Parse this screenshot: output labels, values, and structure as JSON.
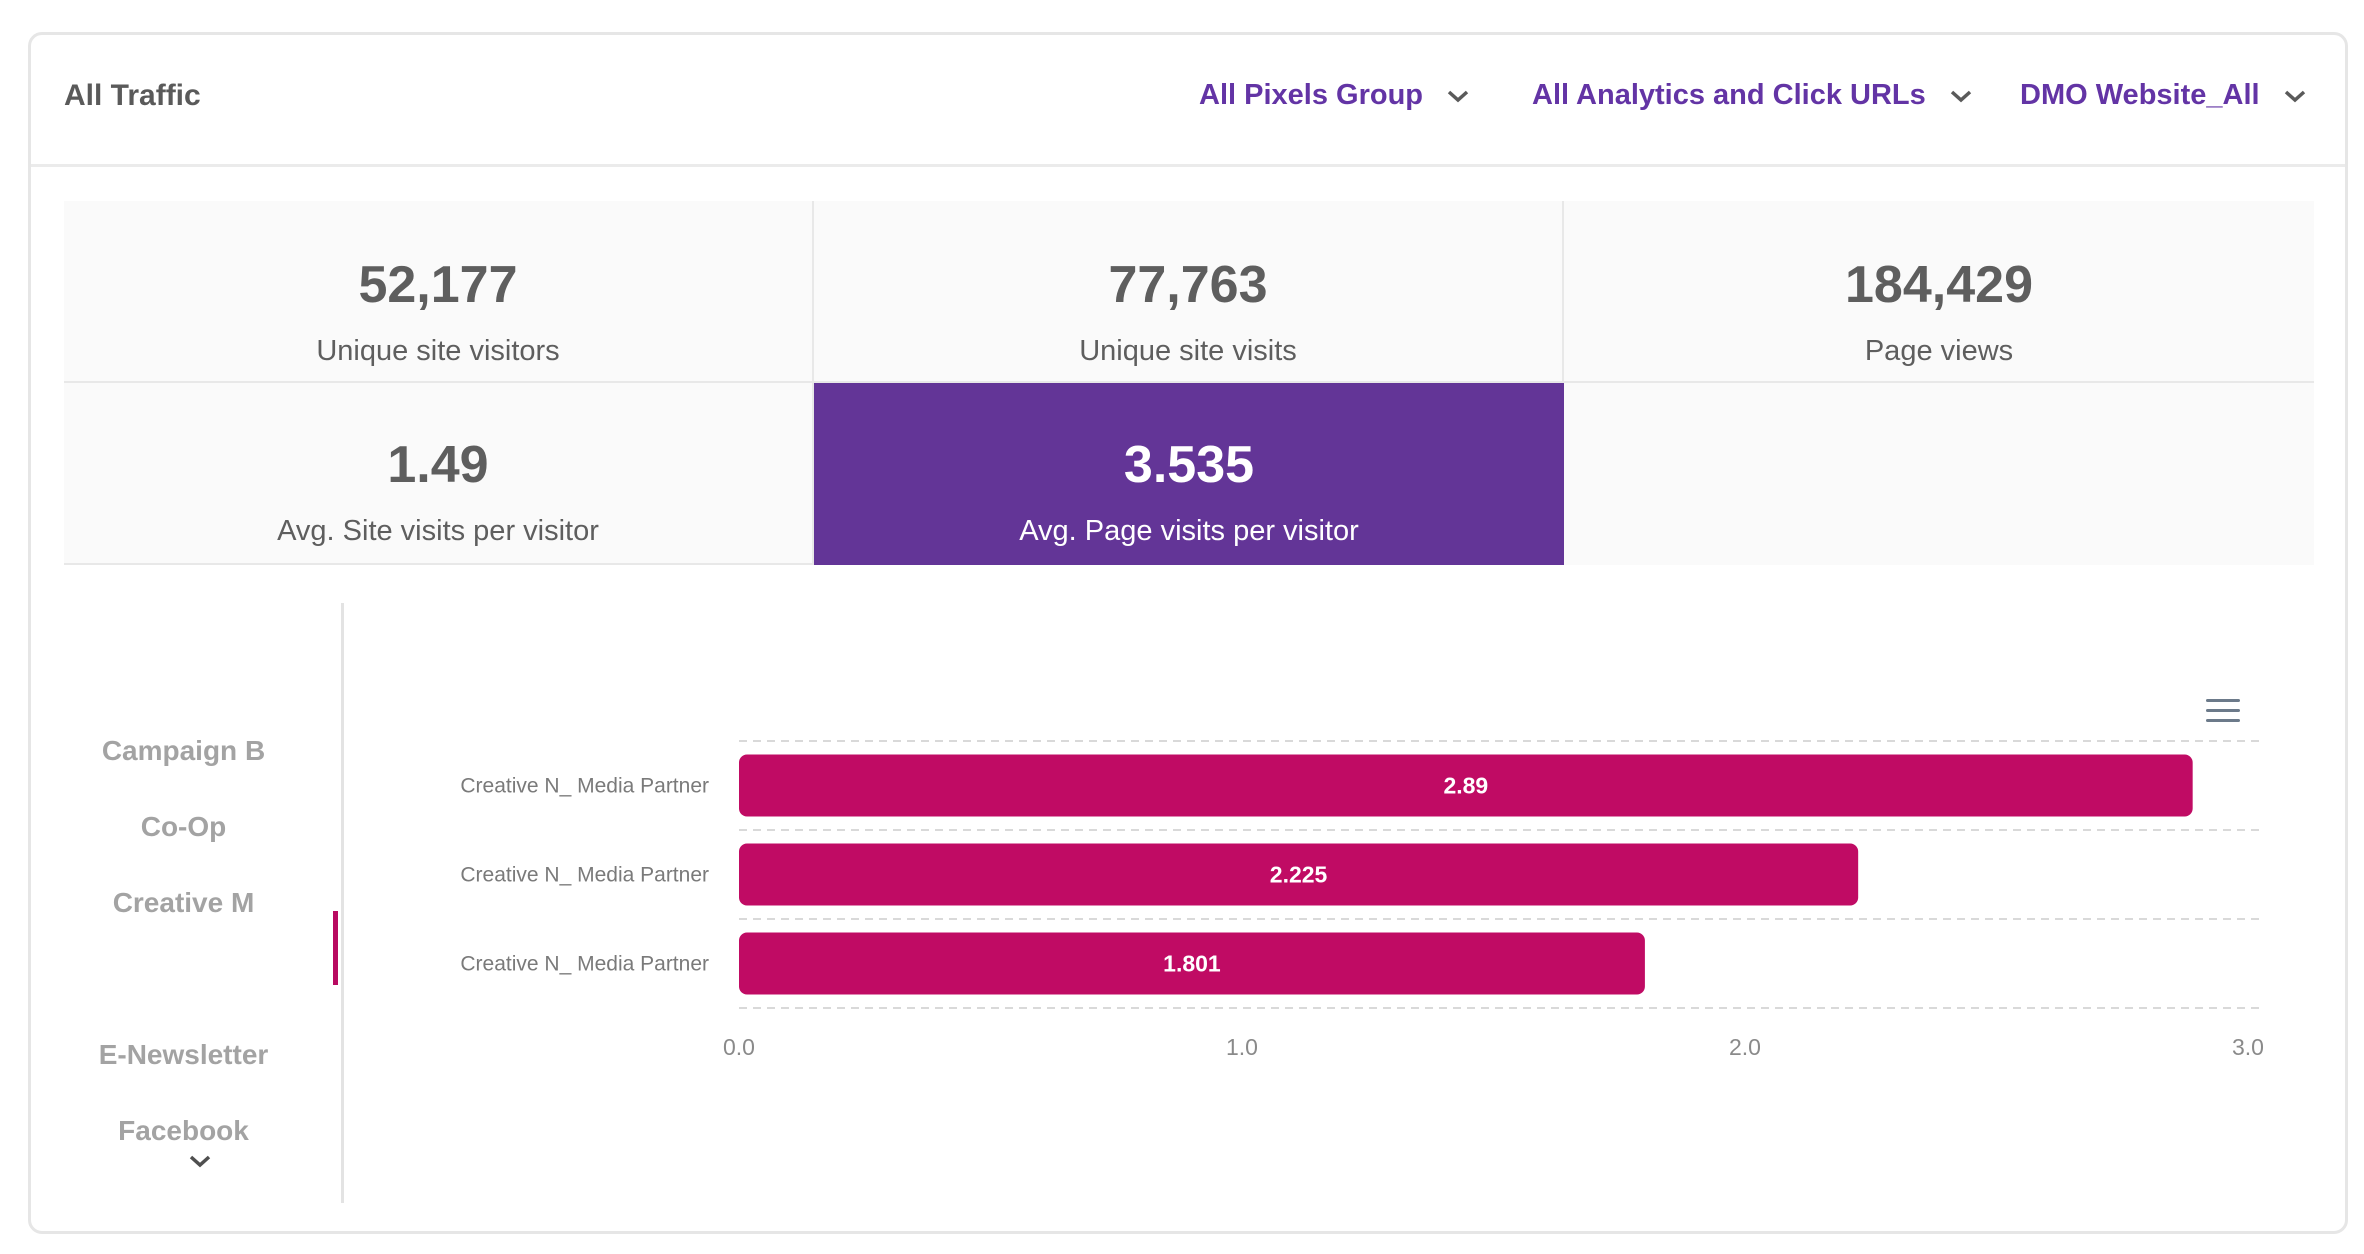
{
  "header": {
    "title": "All Traffic",
    "filters": [
      {
        "label": "All Pixels Group"
      },
      {
        "label": "All Analytics and Click URLs"
      },
      {
        "label": "DMO Website_All"
      }
    ]
  },
  "stats": [
    {
      "value": "52,177",
      "label": "Unique site visitors"
    },
    {
      "value": "77,763",
      "label": "Unique site visits"
    },
    {
      "value": "184,429",
      "label": "Page views"
    },
    {
      "value": "1.49",
      "label": "Avg. Site visits per visitor"
    },
    {
      "value": "3.535",
      "label": "Avg. Page visits per visitor"
    }
  ],
  "tabs": [
    {
      "label": "Campaign B"
    },
    {
      "label": "Co-Op"
    },
    {
      "label": "Creative M"
    },
    {
      "label": ""
    },
    {
      "label": "E-Newsletter"
    },
    {
      "label": "Facebook"
    }
  ],
  "colors": {
    "accent": "#633597",
    "bar": "#c00b64",
    "link": "#6334a5"
  },
  "icons": {
    "filter_chevron": "chevron-down-icon",
    "menu": "hamburger-menu-icon",
    "more": "chevron-down-icon"
  },
  "chart_data": {
    "type": "bar",
    "orientation": "horizontal",
    "categories": [
      "Creative N_ Media Partner",
      "Creative N_ Media Partner",
      "Creative N_ Media Partner"
    ],
    "values": [
      2.89,
      2.225,
      1.801
    ],
    "value_labels": [
      "2.89",
      "2.225",
      "1.801"
    ],
    "xlim": [
      0,
      3
    ],
    "xticks": [
      "0.0",
      "1.0",
      "2.0",
      "3.0"
    ],
    "grid": true,
    "title": "",
    "xlabel": "",
    "ylabel": ""
  }
}
